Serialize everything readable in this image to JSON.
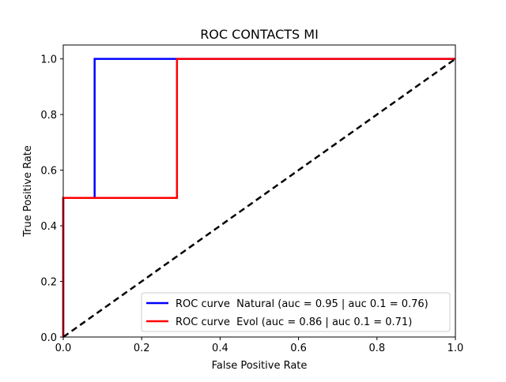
{
  "chart_data": {
    "type": "line",
    "title": "ROC CONTACTS MI",
    "xlabel": "False Positive Rate",
    "ylabel": "True Positive Rate",
    "xlim": [
      0,
      1
    ],
    "ylim": [
      0,
      1.05
    ],
    "xticks": [
      0,
      0.2,
      0.4,
      0.6,
      0.8,
      1
    ],
    "xtick_labels": [
      "0.0",
      "0.2",
      "0.4",
      "0.6",
      "0.8",
      "1.0"
    ],
    "yticks": [
      0,
      0.2,
      0.4,
      0.6,
      0.8,
      1
    ],
    "ytick_labels": [
      "0.0",
      "0.2",
      "0.4",
      "0.6",
      "0.8",
      "1.0"
    ],
    "grid": false,
    "legend_position": "lower-right",
    "series": [
      {
        "name": "ROC curve  Natural (auc = 0.95 | auc 0.1 = 0.76)",
        "color": "#0000ff",
        "x": [
          0,
          0,
          0.01,
          0.01,
          0.08,
          0.08,
          1.0
        ],
        "y": [
          0,
          0.5,
          0.5,
          0.5,
          0.5,
          1.0,
          1.0
        ]
      },
      {
        "name": "ROC curve  Evol (auc = 0.86 | auc 0.1 = 0.71)",
        "color": "#ff0000",
        "x": [
          0,
          0,
          0.29,
          0.29,
          1.0
        ],
        "y": [
          0,
          0.5,
          0.5,
          1.0,
          1.0
        ]
      }
    ],
    "reference_line": {
      "style": "dashed",
      "color": "#000000",
      "x": [
        0,
        1
      ],
      "y": [
        0,
        1
      ]
    }
  }
}
